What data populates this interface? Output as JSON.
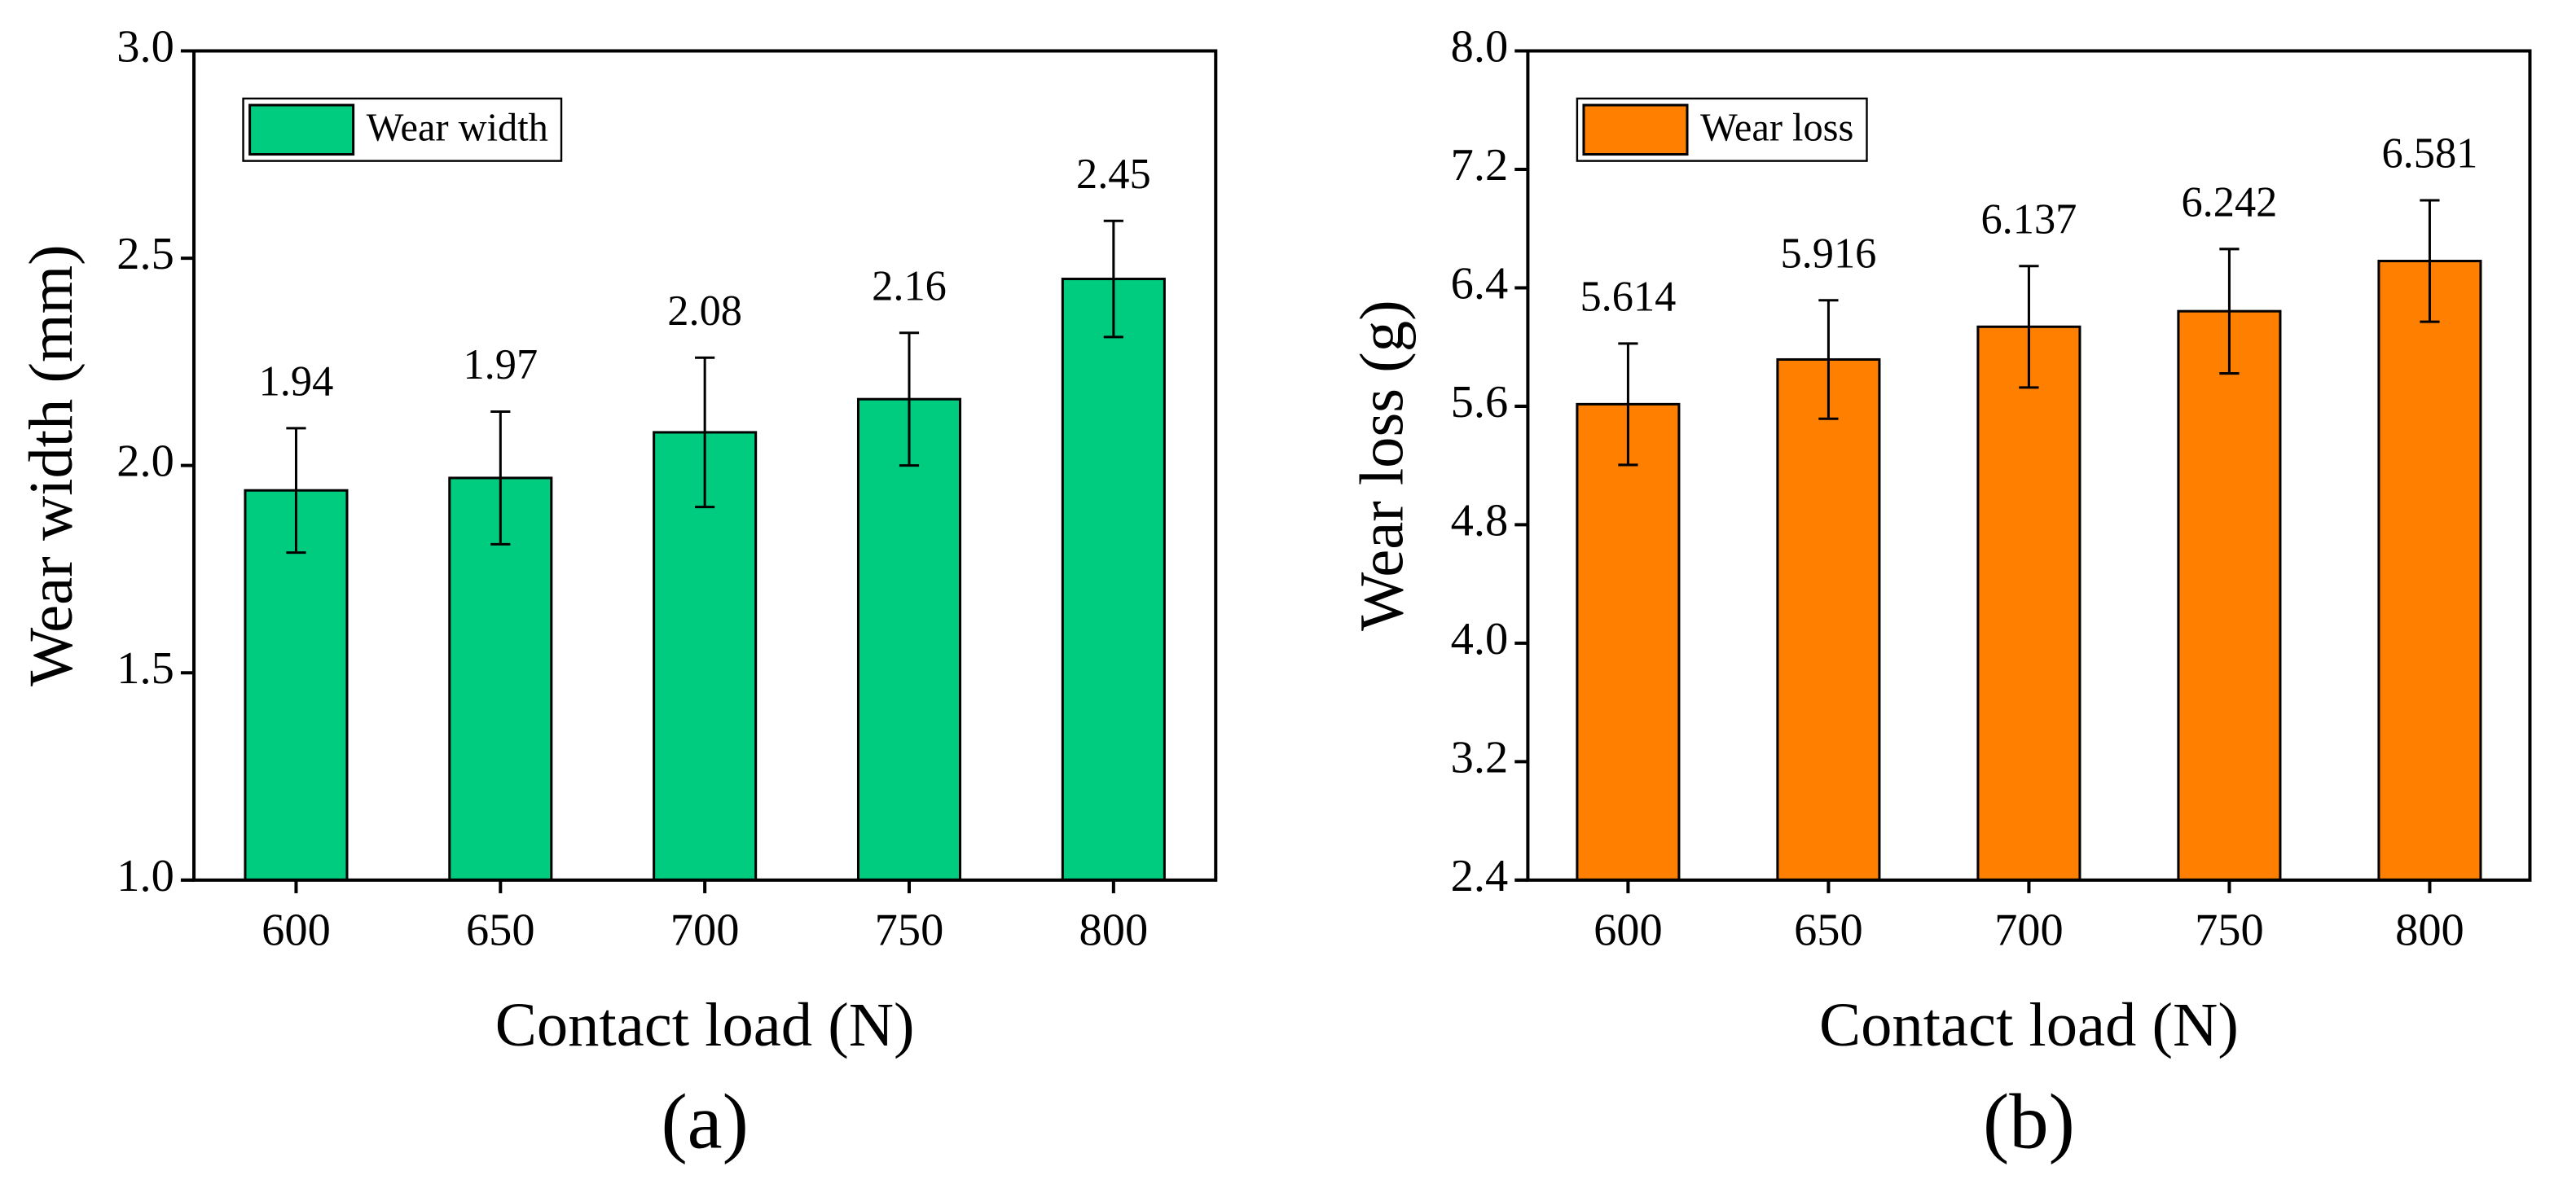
{
  "chart_data": [
    {
      "type": "bar",
      "categories": [
        "600",
        "650",
        "700",
        "750",
        "800"
      ],
      "series": [
        {
          "name": "Wear width",
          "color": "#00cc80",
          "values": [
            1.94,
            1.97,
            2.08,
            2.16,
            2.45
          ],
          "errors": [
            0.15,
            0.16,
            0.18,
            0.16,
            0.14
          ]
        }
      ],
      "ylim": [
        1.0,
        3.0
      ],
      "yticks": [
        {
          "value": 1.0,
          "label": "1.0"
        },
        1.5,
        {
          "value": 2.0,
          "label": "2.0"
        },
        2.5,
        {
          "value": 3.0,
          "label": "3.0"
        }
      ],
      "xlabel": "Contact load (N)",
      "ylabel": "Wear width (mm)",
      "caption": "(a)",
      "legend": "upper left"
    },
    {
      "type": "bar",
      "categories": [
        "600",
        "650",
        "700",
        "750",
        "800"
      ],
      "series": [
        {
          "name": "Wear loss",
          "color": "#ff8000",
          "values": [
            5.614,
            5.916,
            6.137,
            6.242,
            6.581
          ],
          "errors": [
            0.41,
            0.4,
            0.41,
            0.42,
            0.41
          ]
        }
      ],
      "ylim": [
        2.4,
        8.0
      ],
      "yticks": [
        2.4,
        3.2,
        {
          "value": 4.0,
          "label": "4.0"
        },
        4.8,
        5.6,
        6.4,
        7.2,
        {
          "value": 8.0,
          "label": "8.0"
        }
      ],
      "xlabel": "Contact load (N)",
      "ylabel": "Wear loss (g)",
      "caption": "(b)",
      "legend": "upper left"
    }
  ]
}
